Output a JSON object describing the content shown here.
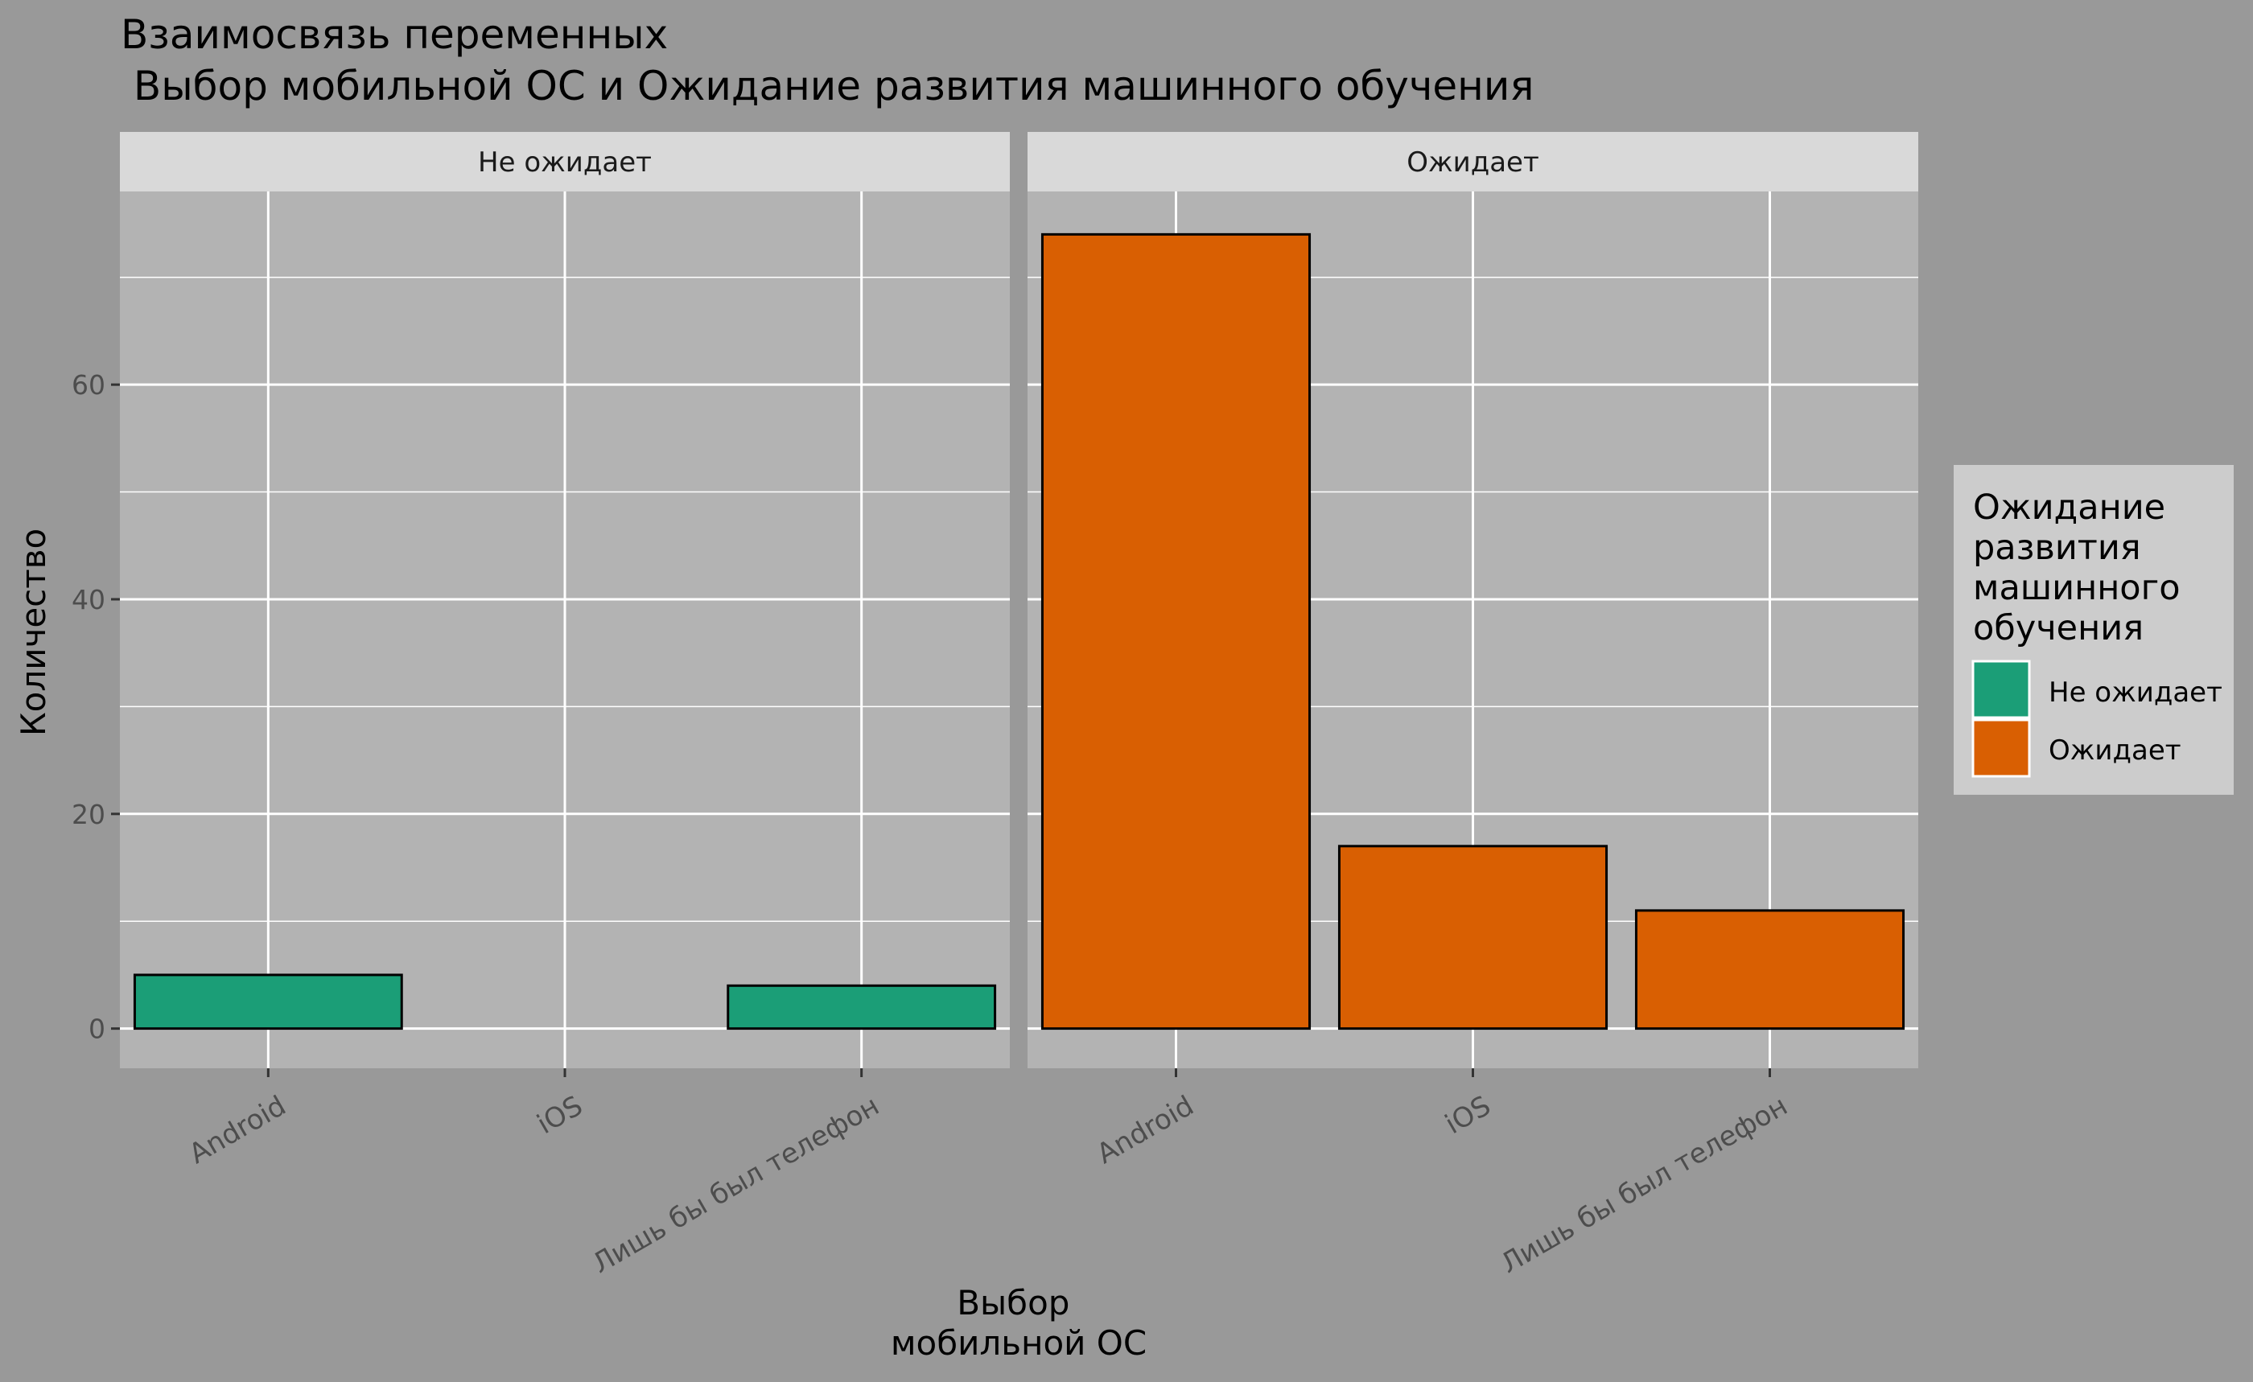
{
  "chart_data": {
    "type": "bar",
    "title_lines": [
      "Взаимосвязь переменных",
      " Выбор мобильной ОС и Ожидание развития машинного обучения"
    ],
    "xlabel_lines": [
      "Выбор",
      "мобильной ОС"
    ],
    "ylabel": "Количество",
    "categories": [
      "Android",
      "iOS",
      "Лишь бы был телефон"
    ],
    "ylim": [
      -3.7,
      78
    ],
    "yticks": [
      0,
      20,
      40,
      60
    ],
    "ytick_labels": [
      "0",
      "20",
      "40",
      "60"
    ],
    "grid": true,
    "facets": [
      {
        "label": "Не ожидает",
        "fill": "#1b9e77",
        "values": [
          5,
          0,
          4
        ]
      },
      {
        "label": "Ожидает",
        "fill": "#d95f02",
        "values": [
          74,
          17,
          11
        ]
      }
    ],
    "legend": {
      "position": "right",
      "title_lines": [
        "Ожидание",
        "развития",
        "машинного",
        "обучения"
      ],
      "items": [
        {
          "label": "Не ожидает",
          "color": "#1b9e77"
        },
        {
          "label": "Ожидает",
          "color": "#d95f02"
        }
      ]
    },
    "colors": {
      "background": "#999999",
      "panel": "#b3b3b3",
      "strip": "#d9d9d9",
      "grid": "#ffffff",
      "bar_outline": "#000000",
      "legend_bg": "#cccccc"
    }
  }
}
